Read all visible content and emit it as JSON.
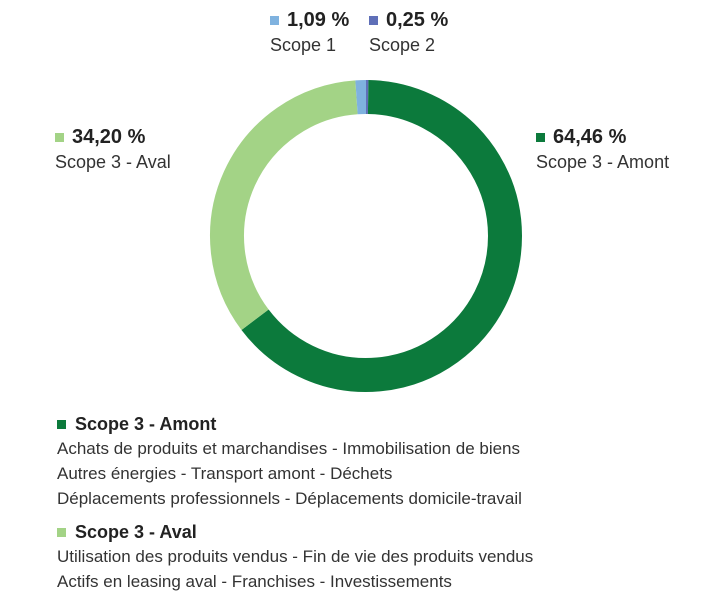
{
  "chart_data": {
    "type": "pie",
    "donut": true,
    "slices": [
      {
        "label": "Scope 1",
        "value": 1.09,
        "value_text": "1,09 %",
        "color": "#7fb2df"
      },
      {
        "label": "Scope 2",
        "value": 0.25,
        "value_text": "0,25 %",
        "color": "#5f6fb8"
      },
      {
        "label": "Scope 3 - Amont",
        "value": 64.46,
        "value_text": "64,46 %",
        "color": "#0c7a3c"
      },
      {
        "label": "Scope 3 - Aval",
        "value": 34.2,
        "value_text": "34,20 %",
        "color": "#a3d386"
      }
    ]
  },
  "legend": {
    "groups": [
      {
        "title": "Scope 3 - Amont",
        "color": "#0c7a3c",
        "lines": [
          "Achats de produits et marchandises - Immobilisation de biens",
          "Autres énergies - Transport amont - Déchets",
          "Déplacements professionnels - Déplacements domicile-travail"
        ]
      },
      {
        "title": "Scope 3 - Aval",
        "color": "#a3d386",
        "lines": [
          "Utilisation des produits vendus - Fin de vie des produits vendus",
          "Actifs en leasing aval - Franchises - Investissements"
        ]
      }
    ]
  }
}
